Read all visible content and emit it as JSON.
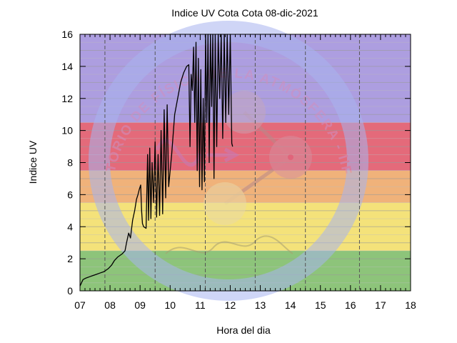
{
  "chart_data": {
    "type": "line",
    "title": "Indice UV Cota Cota 08-dic-2021",
    "xlabel": "Hora del dia",
    "ylabel": "Indice UV",
    "xlim": [
      7,
      18
    ],
    "ylim": [
      0,
      16
    ],
    "x_ticks": [
      "07",
      "08",
      "09",
      "10",
      "11",
      "12",
      "13",
      "14",
      "15",
      "16",
      "17",
      "18"
    ],
    "y_ticks": [
      "0",
      "2",
      "4",
      "6",
      "8",
      "10",
      "12",
      "14",
      "16"
    ],
    "grid": true,
    "risk_bands": [
      {
        "from": 0,
        "to": 2.5,
        "color": "#8dc47a"
      },
      {
        "from": 2.5,
        "to": 5.5,
        "color": "#f4e27a"
      },
      {
        "from": 5.5,
        "to": 7.5,
        "color": "#f0b27a"
      },
      {
        "from": 7.5,
        "to": 10.5,
        "color": "#e46a7a"
      },
      {
        "from": 10.5,
        "to": 16,
        "color": "#ad9ee0"
      }
    ],
    "line_color": "#000000",
    "dashed_vertical_lines_hours": [
      7.83,
      9.5,
      11.17,
      12.83,
      14.5,
      16.3
    ],
    "series": [
      {
        "name": "",
        "points": [
          [
            7.0,
            0.3
          ],
          [
            7.05,
            0.5
          ],
          [
            7.1,
            0.7
          ],
          [
            7.2,
            0.8
          ],
          [
            7.35,
            0.9
          ],
          [
            7.5,
            1.0
          ],
          [
            7.65,
            1.1
          ],
          [
            7.8,
            1.2
          ],
          [
            7.95,
            1.4
          ],
          [
            8.05,
            1.6
          ],
          [
            8.15,
            1.9
          ],
          [
            8.25,
            2.1
          ],
          [
            8.4,
            2.3
          ],
          [
            8.5,
            2.5
          ],
          [
            8.55,
            3.0
          ],
          [
            8.62,
            3.6
          ],
          [
            8.68,
            3.3
          ],
          [
            8.75,
            4.4
          ],
          [
            8.82,
            5.0
          ],
          [
            8.88,
            5.7
          ],
          [
            8.93,
            6.0
          ],
          [
            8.97,
            6.3
          ],
          [
            9.02,
            6.6
          ],
          [
            9.05,
            5.0
          ],
          [
            9.08,
            4.2
          ],
          [
            9.12,
            4.0
          ],
          [
            9.2,
            3.9
          ],
          [
            9.25,
            8.5
          ],
          [
            9.28,
            4.4
          ],
          [
            9.32,
            8.9
          ],
          [
            9.36,
            4.5
          ],
          [
            9.4,
            8.0
          ],
          [
            9.45,
            5.5
          ],
          [
            9.5,
            9.3
          ],
          [
            9.55,
            4.6
          ],
          [
            9.6,
            8.5
          ],
          [
            9.65,
            4.7
          ],
          [
            9.7,
            10.0
          ],
          [
            9.75,
            4.8
          ],
          [
            9.8,
            11.3
          ],
          [
            9.85,
            5.8
          ],
          [
            9.9,
            11.6
          ],
          [
            9.95,
            6.5
          ],
          [
            10.05,
            8.5
          ],
          [
            10.15,
            11.0
          ],
          [
            10.25,
            12.0
          ],
          [
            10.35,
            13.0
          ],
          [
            10.45,
            13.6
          ],
          [
            10.55,
            14.0
          ],
          [
            10.62,
            14.1
          ],
          [
            10.66,
            9.0
          ],
          [
            10.7,
            13.5
          ],
          [
            10.74,
            12.5
          ],
          [
            10.78,
            15.2
          ],
          [
            10.82,
            10.5
          ],
          [
            10.86,
            15.5
          ],
          [
            10.9,
            7.5
          ],
          [
            10.94,
            14.5
          ],
          [
            10.98,
            6.5
          ],
          [
            11.02,
            13.8
          ],
          [
            11.06,
            6.3
          ],
          [
            11.1,
            12.0
          ],
          [
            11.14,
            6.8
          ],
          [
            11.18,
            16.0
          ],
          [
            11.22,
            10.5
          ],
          [
            11.26,
            16.0
          ],
          [
            11.3,
            8.0
          ],
          [
            11.34,
            16.0
          ],
          [
            11.38,
            11.5
          ],
          [
            11.42,
            16.0
          ],
          [
            11.46,
            7.0
          ],
          [
            11.5,
            16.0
          ],
          [
            11.55,
            9.0
          ],
          [
            11.6,
            16.0
          ],
          [
            11.65,
            12.0
          ],
          [
            11.7,
            16.0
          ],
          [
            11.75,
            9.5
          ],
          [
            11.8,
            16.0
          ],
          [
            11.85,
            10.5
          ],
          [
            11.9,
            16.0
          ],
          [
            11.95,
            11.0
          ],
          [
            12.0,
            16.0
          ],
          [
            12.05,
            9.2
          ],
          [
            12.08,
            9.0
          ]
        ]
      }
    ],
    "watermark_text": "LABORATORIO DE FÍSICA DE LA ATMÓSFERA - IIF - UMSA"
  }
}
